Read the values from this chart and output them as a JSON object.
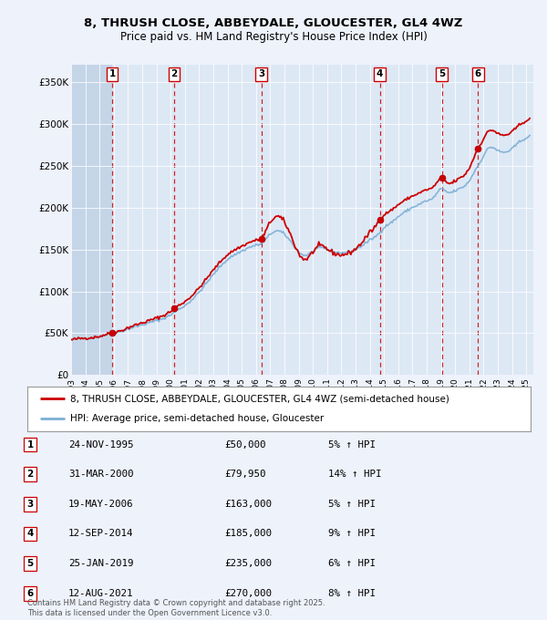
{
  "title": "8, THRUSH CLOSE, ABBEYDALE, GLOUCESTER, GL4 4WZ",
  "subtitle": "Price paid vs. HM Land Registry's House Price Index (HPI)",
  "background_color": "#eef2fb",
  "plot_bg_color": "#dde8f5",
  "hatch_region_color": "#c5d5e8",
  "ylim": [
    0,
    370000
  ],
  "yticks": [
    0,
    50000,
    100000,
    150000,
    200000,
    250000,
    300000,
    350000
  ],
  "ytick_labels": [
    "£0",
    "£50K",
    "£100K",
    "£150K",
    "£200K",
    "£250K",
    "£300K",
    "£350K"
  ],
  "xlim_start": 1993.0,
  "xlim_end": 2025.5,
  "xtick_years": [
    1993,
    1994,
    1995,
    1996,
    1997,
    1998,
    1999,
    2000,
    2001,
    2002,
    2003,
    2004,
    2005,
    2006,
    2007,
    2008,
    2009,
    2010,
    2011,
    2012,
    2013,
    2014,
    2015,
    2016,
    2017,
    2018,
    2019,
    2020,
    2021,
    2022,
    2023,
    2024,
    2025
  ],
  "price_paid_x": [
    1995.9,
    2000.25,
    2006.38,
    2014.7,
    2019.07,
    2021.62
  ],
  "price_paid_y": [
    50000,
    79950,
    163000,
    185000,
    235000,
    270000
  ],
  "sale_labels": [
    "1",
    "2",
    "3",
    "4",
    "5",
    "6"
  ],
  "sale_dates": [
    "24-NOV-1995",
    "31-MAR-2000",
    "19-MAY-2006",
    "12-SEP-2014",
    "25-JAN-2019",
    "12-AUG-2021"
  ],
  "sale_prices": [
    "£50,000",
    "£79,950",
    "£163,000",
    "£185,000",
    "£235,000",
    "£270,000"
  ],
  "sale_hpi_pct": [
    "5% ↑ HPI",
    "14% ↑ HPI",
    "5% ↑ HPI",
    "9% ↑ HPI",
    "6% ↑ HPI",
    "8% ↑ HPI"
  ],
  "red_line_color": "#cc0000",
  "blue_line_color": "#7bafd4",
  "marker_color": "#cc0000",
  "marker_box_color": "#cc0000",
  "vline_color": "#cc0000",
  "legend_label_red": "8, THRUSH CLOSE, ABBEYDALE, GLOUCESTER, GL4 4WZ (semi-detached house)",
  "legend_label_blue": "HPI: Average price, semi-detached house, Gloucester",
  "footer": "Contains HM Land Registry data © Crown copyright and database right 2025.\nThis data is licensed under the Open Government Licence v3.0."
}
